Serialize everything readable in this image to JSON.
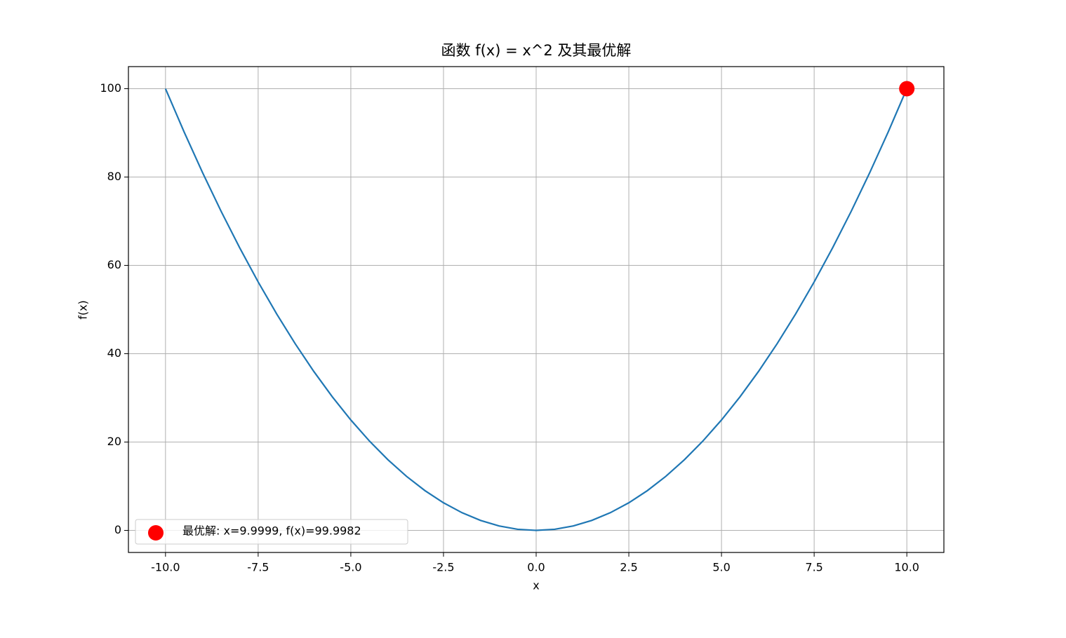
{
  "chart_data": {
    "type": "line",
    "title": "函数 f(x) = x^2 及其最优解",
    "xlabel": "x",
    "ylabel": "f(x)",
    "x": [
      -10,
      -9.5,
      -9,
      -8.5,
      -8,
      -7.5,
      -7,
      -6.5,
      -6,
      -5.5,
      -5,
      -4.5,
      -4,
      -3.5,
      -3,
      -2.5,
      -2,
      -1.5,
      -1,
      -0.5,
      0,
      0.5,
      1,
      1.5,
      2,
      2.5,
      3,
      3.5,
      4,
      4.5,
      5,
      5.5,
      6,
      6.5,
      7,
      7.5,
      8,
      8.5,
      9,
      9.5,
      10
    ],
    "series": [
      {
        "type": "line",
        "color": "#1f77b4",
        "values": [
          100,
          90.25,
          81,
          72.25,
          64,
          56.25,
          49,
          42.25,
          36,
          30.25,
          25,
          20.25,
          16,
          12.25,
          9,
          6.25,
          4,
          2.25,
          1,
          0.25,
          0,
          0.25,
          1,
          2.25,
          4,
          6.25,
          9,
          12.25,
          16,
          20.25,
          25,
          30.25,
          36,
          42.25,
          49,
          56.25,
          64,
          72.25,
          81,
          90.25,
          100
        ]
      },
      {
        "type": "scatter",
        "name": "最优解: x=9.9999, f(x)=99.9982",
        "color": "#ff0000",
        "x": [
          9.9999
        ],
        "values": [
          99.9982
        ]
      }
    ],
    "xlim": [
      -11,
      11
    ],
    "ylim": [
      -5,
      105
    ],
    "xticks": [
      {
        "value": -10,
        "label": "-10.0"
      },
      -7.5,
      {
        "value": -5,
        "label": "-5.0"
      },
      -2.5,
      {
        "value": 0,
        "label": "0.0"
      },
      2.5,
      {
        "value": 5,
        "label": "5.0"
      },
      7.5,
      {
        "value": 10,
        "label": "10.0"
      }
    ],
    "yticks": [
      0,
      20,
      40,
      60,
      80,
      100
    ],
    "grid": true,
    "legend": "lower left"
  }
}
